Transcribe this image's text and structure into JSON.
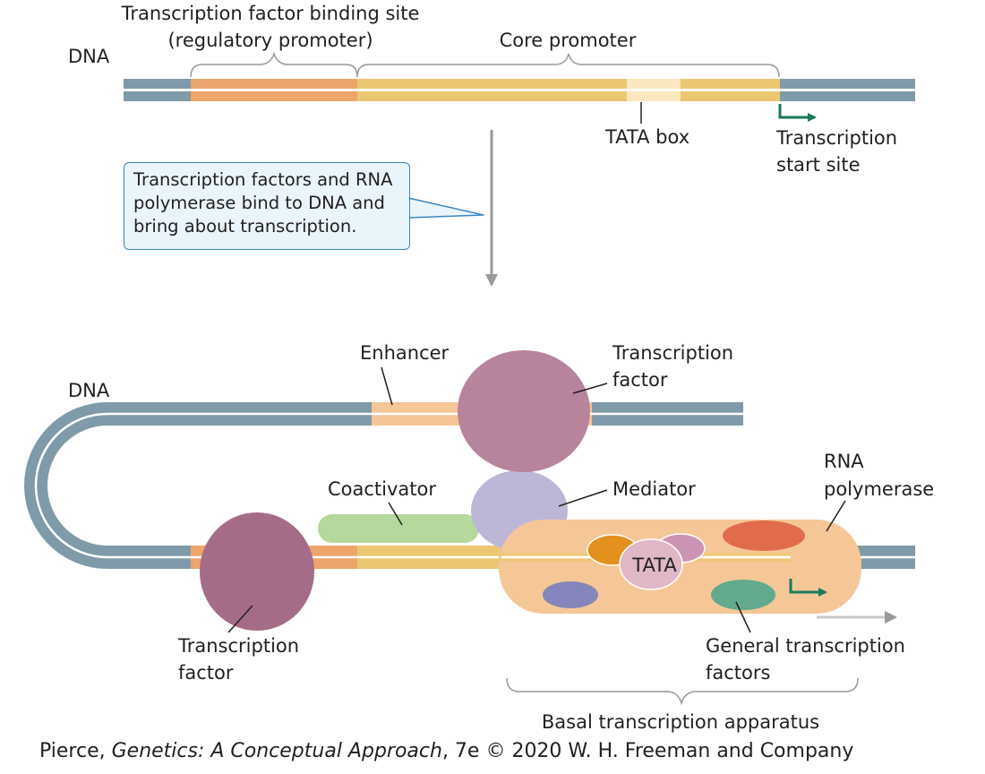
{
  "top_panel": {
    "dna_label": "DNA",
    "tf_site_label_line1": "Transcription factor binding site",
    "tf_site_label_line2": "(regulatory promoter)",
    "core_promoter_label": "Core promoter",
    "tata_box_label": "TATA box",
    "start_site_label_line1": "Transcription",
    "start_site_label_line2": "start site"
  },
  "callout": {
    "text": "Transcription factors and RNA polymerase bind to DNA and bring about transcription."
  },
  "bottom_panel": {
    "dna_label": "DNA",
    "enhancer_label": "Enhancer",
    "tf_top_label_line1": "Transcription",
    "tf_top_label_line2": "factor",
    "coactivator_label": "Coactivator",
    "mediator_label": "Mediator",
    "rna_pol_label_line1": "RNA",
    "rna_pol_label_line2": "polymerase",
    "tata_label": "TATA",
    "tf_bottom_label_line1": "Transcription",
    "tf_bottom_label_line2": "factor",
    "gtf_label_line1": "General transcription",
    "gtf_label_line2": "factors",
    "basal_label": "Basal transcription apparatus"
  },
  "credit": {
    "prefix": "Pierce, ",
    "book_title": "Genetics: A Conceptual Approach",
    "suffix": ", 7e © 2020 W. H. Freeman and Company"
  },
  "colors": {
    "dna_strand": "#7f9aa8",
    "regulatory_promoter": "#eda56b",
    "core_promoter": "#ebc772",
    "tata_box": "#fbe8bf",
    "enhancer": "#f5c596",
    "transcription_factor_top": "#b8839c",
    "transcription_factor_bottom": "#a56c88",
    "mediator": "#bcb7d6",
    "coactivator": "#b5d89c",
    "rna_polymerase": "#f5c797",
    "start_arrow": "#1a7a5a",
    "callout_border": "#3a87c0",
    "callout_fill": "#eaf5fb"
  }
}
